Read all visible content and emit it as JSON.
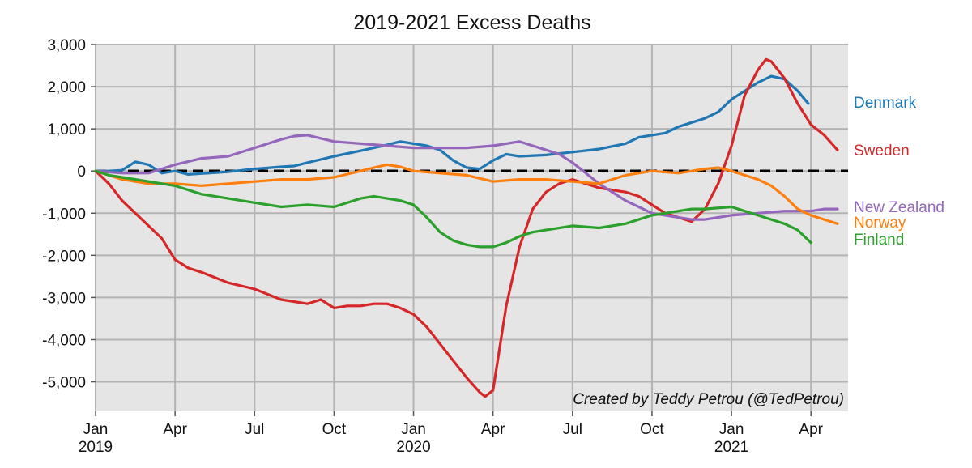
{
  "chart_data": {
    "type": "line",
    "title": "2019-2021 Excess Deaths",
    "xlabel": "",
    "ylabel": "",
    "credit": "Created by Teddy Petrou (@TedPetrou)",
    "x_unit": "months since Jan 2019",
    "xlim": [
      0,
      28.4
    ],
    "ylim": [
      -5700,
      3000
    ],
    "grid": true,
    "legend": "right-edge labels",
    "y_ticks": [
      {
        "value": 3000,
        "label": "3,000"
      },
      {
        "value": 2000,
        "label": "2,000"
      },
      {
        "value": 1000,
        "label": "1,000"
      },
      {
        "value": 0,
        "label": "0"
      },
      {
        "value": -1000,
        "label": "-1,000"
      },
      {
        "value": -2000,
        "label": "-2,000"
      },
      {
        "value": -3000,
        "label": "-3,000"
      },
      {
        "value": -4000,
        "label": "-4,000"
      },
      {
        "value": -5000,
        "label": "-5,000"
      }
    ],
    "x_ticks": [
      {
        "value": 0,
        "label": "Jan",
        "sub": "2019"
      },
      {
        "value": 3,
        "label": "Apr",
        "sub": ""
      },
      {
        "value": 6,
        "label": "Jul",
        "sub": ""
      },
      {
        "value": 9,
        "label": "Oct",
        "sub": ""
      },
      {
        "value": 12,
        "label": "Jan",
        "sub": "2020"
      },
      {
        "value": 15,
        "label": "Apr",
        "sub": ""
      },
      {
        "value": 18,
        "label": "Jul",
        "sub": ""
      },
      {
        "value": 21,
        "label": "Oct",
        "sub": ""
      },
      {
        "value": 24,
        "label": "Jan",
        "sub": "2021"
      },
      {
        "value": 27,
        "label": "Apr",
        "sub": ""
      }
    ],
    "zero_line": {
      "value": 0,
      "style": "dashed",
      "color": "#000000"
    },
    "series": [
      {
        "name": "Denmark",
        "color": "#1f77b4",
        "x": [
          0,
          0.5,
          1.0,
          1.5,
          2.0,
          2.5,
          3.0,
          3.5,
          4.0,
          5.0,
          6.0,
          7.0,
          7.5,
          8.0,
          9.0,
          10.0,
          11.0,
          11.5,
          12.0,
          12.5,
          13.0,
          13.5,
          14.0,
          14.5,
          15.0,
          15.5,
          16.0,
          17.0,
          18.0,
          19.0,
          20.0,
          20.5,
          21.0,
          21.5,
          22.0,
          22.5,
          23.0,
          23.5,
          24.0,
          24.5,
          25.0,
          25.5,
          26.0,
          26.5,
          26.9
        ],
        "values": [
          0,
          0,
          20,
          220,
          150,
          -50,
          0,
          -80,
          -60,
          -20,
          50,
          100,
          120,
          200,
          350,
          480,
          620,
          700,
          650,
          600,
          500,
          250,
          80,
          50,
          250,
          400,
          350,
          380,
          450,
          520,
          650,
          800,
          850,
          900,
          1050,
          1150,
          1250,
          1400,
          1700,
          1900,
          2100,
          2250,
          2180,
          1900,
          1600
        ]
      },
      {
        "name": "Sweden",
        "color": "#d62728",
        "x": [
          0,
          0.5,
          1.0,
          1.5,
          2.0,
          2.5,
          3.0,
          3.5,
          4.0,
          5.0,
          6.0,
          7.0,
          8.0,
          8.5,
          9.0,
          9.5,
          10.0,
          10.5,
          11.0,
          11.5,
          12.0,
          12.5,
          13.0,
          13.5,
          14.0,
          14.5,
          14.7,
          15.0,
          15.5,
          16.0,
          16.5,
          17.0,
          17.5,
          18.0,
          18.5,
          19.0,
          19.5,
          20.0,
          20.5,
          21.0,
          21.5,
          22.0,
          22.5,
          23.0,
          23.5,
          24.0,
          24.5,
          25.0,
          25.3,
          25.5,
          26.0,
          26.5,
          27.0,
          27.5,
          28.0
        ],
        "values": [
          0,
          -300,
          -700,
          -1000,
          -1300,
          -1600,
          -2100,
          -2300,
          -2400,
          -2650,
          -2800,
          -3050,
          -3150,
          -3050,
          -3250,
          -3200,
          -3200,
          -3150,
          -3150,
          -3250,
          -3400,
          -3700,
          -4100,
          -4500,
          -4900,
          -5250,
          -5350,
          -5200,
          -3200,
          -1800,
          -900,
          -500,
          -300,
          -200,
          -300,
          -400,
          -450,
          -500,
          -600,
          -800,
          -1000,
          -1100,
          -1200,
          -900,
          -300,
          600,
          1800,
          2400,
          2650,
          2600,
          2200,
          1600,
          1100,
          850,
          500
        ]
      },
      {
        "name": "New Zealand",
        "color": "#9467bd",
        "x": [
          0,
          1.0,
          2.0,
          3.0,
          4.0,
          5.0,
          6.0,
          7.0,
          7.5,
          8.0,
          9.0,
          10.0,
          11.0,
          12.0,
          13.0,
          14.0,
          15.0,
          15.5,
          16.0,
          16.5,
          17.0,
          17.5,
          18.0,
          19.0,
          20.0,
          21.0,
          22.0,
          22.5,
          23.0,
          23.5,
          24.0,
          25.0,
          26.0,
          27.0,
          27.5,
          28.0
        ],
        "values": [
          0,
          -50,
          -50,
          150,
          300,
          350,
          550,
          750,
          830,
          850,
          700,
          650,
          600,
          550,
          550,
          550,
          600,
          650,
          700,
          600,
          500,
          400,
          200,
          -300,
          -700,
          -1000,
          -1100,
          -1150,
          -1150,
          -1100,
          -1050,
          -1000,
          -950,
          -950,
          -900,
          -900
        ]
      },
      {
        "name": "Norway",
        "color": "#ff7f0e",
        "x": [
          0,
          0.5,
          1.0,
          1.5,
          2.0,
          3.0,
          4.0,
          5.0,
          6.0,
          7.0,
          8.0,
          9.0,
          10.0,
          10.5,
          11.0,
          11.5,
          12.0,
          13.0,
          14.0,
          15.0,
          16.0,
          17.0,
          18.0,
          19.0,
          20.0,
          21.0,
          22.0,
          22.5,
          23.0,
          23.5,
          24.0,
          24.5,
          25.0,
          25.5,
          26.0,
          26.5,
          27.0,
          27.5,
          28.0
        ],
        "values": [
          0,
          -100,
          -200,
          -250,
          -300,
          -300,
          -350,
          -300,
          -250,
          -200,
          -200,
          -150,
          0,
          80,
          150,
          100,
          0,
          -50,
          -100,
          -250,
          -200,
          -200,
          -250,
          -300,
          -100,
          0,
          -50,
          0,
          50,
          80,
          0,
          -100,
          -200,
          -350,
          -600,
          -900,
          -1050,
          -1150,
          -1250
        ]
      },
      {
        "name": "Finland",
        "color": "#2ca02c",
        "x": [
          0,
          0.5,
          1.0,
          1.5,
          2.0,
          2.5,
          3.0,
          4.0,
          5.0,
          6.0,
          7.0,
          8.0,
          9.0,
          10.0,
          10.5,
          11.0,
          11.5,
          12.0,
          12.5,
          13.0,
          13.5,
          14.0,
          14.5,
          15.0,
          15.5,
          16.0,
          16.5,
          17.0,
          18.0,
          19.0,
          20.0,
          21.0,
          22.0,
          22.5,
          23.0,
          24.0,
          24.5,
          25.0,
          25.5,
          26.0,
          26.5,
          27.0
        ],
        "values": [
          0,
          -100,
          -150,
          -200,
          -250,
          -300,
          -350,
          -550,
          -650,
          -750,
          -850,
          -800,
          -850,
          -650,
          -600,
          -650,
          -700,
          -800,
          -1100,
          -1450,
          -1650,
          -1750,
          -1800,
          -1800,
          -1700,
          -1550,
          -1450,
          -1400,
          -1300,
          -1350,
          -1250,
          -1050,
          -950,
          -900,
          -900,
          -850,
          -950,
          -1050,
          -1150,
          -1250,
          -1400,
          -1700
        ]
      }
    ]
  }
}
